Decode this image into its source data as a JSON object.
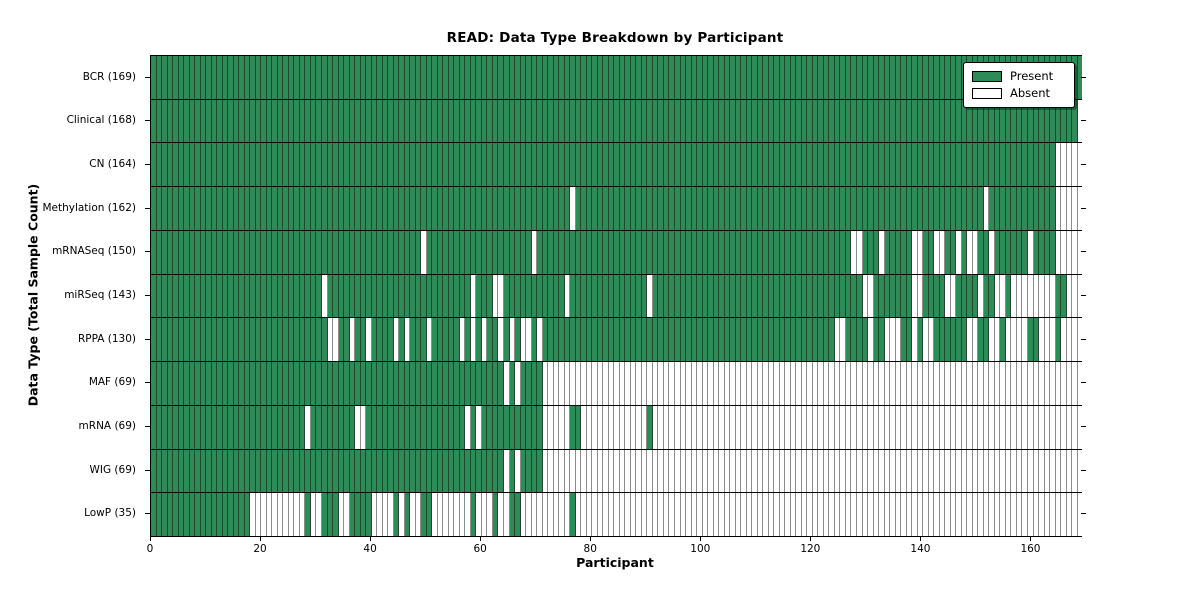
{
  "chart_data": {
    "type": "heatmap",
    "title": "READ: Data Type Breakdown by Participant",
    "xlabel": "Participant",
    "ylabel": "Data Type (Total Sample Count)",
    "x_ticks": [
      0,
      20,
      40,
      60,
      80,
      100,
      120,
      140,
      160
    ],
    "x_range": [
      0,
      169
    ],
    "n_participants": 169,
    "legend": {
      "position": "upper right",
      "present_label": "Present",
      "absent_label": "Absent"
    },
    "colors": {
      "present": "#2e8b57",
      "absent": "#ffffff",
      "cell_edge": "rgba(0,0,0,0.45)",
      "axis": "#000000"
    },
    "grid": false,
    "rows": [
      {
        "label": "BCR (169)",
        "name": "BCR",
        "count": 169,
        "absent": []
      },
      {
        "label": "Clinical (168)",
        "name": "Clinical",
        "count": 168,
        "absent": [
          168
        ]
      },
      {
        "label": "CN (164)",
        "name": "CN",
        "count": 164,
        "absent": [
          [
            164,
            168
          ]
        ]
      },
      {
        "label": "Methylation (162)",
        "name": "Methylation",
        "count": 162,
        "absent": [
          76,
          151,
          [
            164,
            168
          ]
        ]
      },
      {
        "label": "mRNASeq (150)",
        "name": "mRNASeq",
        "count": 150,
        "absent": [
          49,
          69,
          127,
          128,
          132,
          138,
          139,
          142,
          143,
          146,
          148,
          149,
          152,
          159,
          [
            164,
            168
          ]
        ]
      },
      {
        "label": "miRSeq (143)",
        "name": "miRSeq",
        "count": 143,
        "absent": [
          31,
          58,
          62,
          63,
          75,
          90,
          129,
          130,
          138,
          139,
          144,
          145,
          150,
          153,
          154,
          [
            156,
            163
          ],
          [
            166,
            168
          ]
        ]
      },
      {
        "label": "RPPA (130)",
        "name": "RPPA",
        "count": 130,
        "absent": [
          32,
          33,
          36,
          39,
          44,
          46,
          50,
          56,
          58,
          60,
          63,
          65,
          67,
          68,
          70,
          124,
          125,
          130,
          [
            133,
            135
          ],
          138,
          140,
          141,
          148,
          149,
          152,
          153,
          [
            155,
            158
          ],
          [
            161,
            163
          ],
          [
            165,
            168
          ]
        ]
      },
      {
        "label": "MAF (69)",
        "name": "MAF",
        "count": 69,
        "absent": [
          64,
          66,
          [
            71,
            168
          ]
        ]
      },
      {
        "label": "mRNA (69)",
        "name": "mRNA",
        "count": 69,
        "absent": [
          28,
          37,
          38,
          57,
          59,
          [
            71,
            75
          ],
          [
            78,
            89
          ],
          [
            91,
            168
          ]
        ]
      },
      {
        "label": "WIG (69)",
        "name": "WIG",
        "count": 69,
        "absent": [
          64,
          66,
          [
            71,
            168
          ]
        ]
      },
      {
        "label": "LowP (35)",
        "name": "LowP",
        "count": 35,
        "absent": [
          [
            18,
            27
          ],
          29,
          30,
          34,
          35,
          [
            40,
            43
          ],
          45,
          47,
          48,
          [
            51,
            57
          ],
          [
            59,
            61
          ],
          63,
          64,
          [
            67,
            75
          ],
          [
            77,
            168
          ]
        ]
      }
    ]
  }
}
